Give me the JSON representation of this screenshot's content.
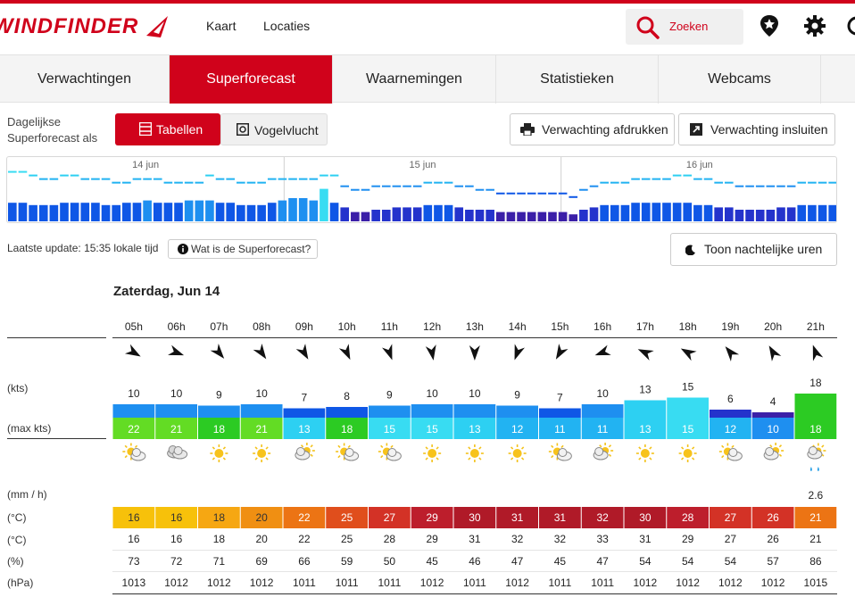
{
  "header": {
    "logo_text": "WINDFINDER",
    "nav": [
      "Kaart",
      "Locaties"
    ],
    "search_label": "Zoeken",
    "brand_color": "#d0021b"
  },
  "tabs": [
    "Verwachtingen",
    "Superforecast",
    "Waarnemingen",
    "Statistieken",
    "Webcams"
  ],
  "active_tab": "Superforecast",
  "mode": {
    "label_line1": "Dagelijkse",
    "label_line2": "Superforecast als",
    "option_tables": "Tabellen",
    "option_birdseye": "Vogelvlucht",
    "selected": "Tabellen"
  },
  "actions": {
    "print": "Verwachting afdrukken",
    "embed": "Verwachting insluiten",
    "night": "Toon nachtelijke uren"
  },
  "overview": {
    "days": [
      "14 jun",
      "15 jun",
      "16 jun"
    ],
    "wind_kts": [
      8,
      8,
      7,
      7,
      7,
      8,
      8,
      8,
      8,
      7,
      7,
      8,
      8,
      9,
      8,
      8,
      8,
      9,
      9,
      9,
      8,
      8,
      7,
      7,
      7,
      8,
      9,
      10,
      10,
      9,
      14,
      8,
      6,
      4,
      4,
      5,
      5,
      6,
      6,
      6,
      7,
      7,
      7,
      6,
      5,
      5,
      5,
      4,
      4,
      4,
      4,
      4,
      4,
      4,
      3,
      5,
      6,
      7,
      7,
      7,
      8,
      8,
      8,
      8,
      8,
      8,
      7,
      7,
      6,
      6,
      5,
      5,
      5,
      5,
      6,
      6,
      7,
      7,
      7,
      7
    ],
    "gust_kts": [
      14,
      14,
      13,
      12,
      12,
      13,
      13,
      12,
      12,
      12,
      11,
      11,
      12,
      12,
      12,
      11,
      11,
      11,
      11,
      13,
      12,
      12,
      11,
      11,
      11,
      12,
      12,
      12,
      12,
      12,
      13,
      13,
      10,
      9,
      9,
      10,
      10,
      10,
      10,
      10,
      11,
      11,
      11,
      10,
      10,
      9,
      9,
      8,
      8,
      8,
      8,
      8,
      8,
      8,
      7,
      9,
      10,
      11,
      11,
      11,
      12,
      12,
      12,
      12,
      13,
      13,
      12,
      12,
      11,
      11,
      10,
      10,
      10,
      10,
      10,
      10,
      11,
      11,
      11,
      11
    ]
  },
  "update": {
    "text": "Laatste update: 15:35 lokale tijd",
    "info_button": "Wat is de Superforecast?"
  },
  "day_title": "Zaterdag, Jun 14",
  "row_labels": {
    "wind": "(kts)",
    "gust": "(max kts)",
    "rain": "(mm / h)",
    "air_temp": "(°C)",
    "feels_temp": "(°C)",
    "humidity": "(%)",
    "pressure": "(hPa)"
  },
  "hours": [
    "05h",
    "06h",
    "07h",
    "08h",
    "09h",
    "10h",
    "11h",
    "12h",
    "13h",
    "14h",
    "15h",
    "16h",
    "17h",
    "18h",
    "19h",
    "20h",
    "21h"
  ],
  "wind_dir_deg": [
    120,
    110,
    140,
    145,
    150,
    155,
    160,
    170,
    180,
    200,
    210,
    250,
    295,
    300,
    320,
    330,
    340
  ],
  "wind_kts": [
    10,
    10,
    9,
    10,
    7,
    8,
    9,
    10,
    10,
    9,
    7,
    10,
    13,
    15,
    6,
    4,
    18
  ],
  "gust_kts": [
    22,
    21,
    18,
    21,
    13,
    18,
    15,
    15,
    13,
    12,
    11,
    11,
    13,
    15,
    12,
    10,
    18
  ],
  "weather_icons": [
    "sun-cloud",
    "cloud",
    "sun",
    "sun",
    "cloud-sun",
    "sun-cloud",
    "sun-cloud",
    "sun",
    "sun",
    "sun",
    "sun-cloud",
    "cloud-sun",
    "sun",
    "sun",
    "sun-cloud",
    "cloud-sun",
    "rain-cloud"
  ],
  "rain_mm": [
    "",
    "",
    "",
    "",
    "",
    "",
    "",
    "",
    "",
    "",
    "",
    "",
    "",
    "",
    "",
    "",
    "2.6"
  ],
  "air_temp": [
    16,
    16,
    18,
    20,
    22,
    25,
    27,
    29,
    30,
    31,
    31,
    32,
    30,
    28,
    27,
    26,
    21
  ],
  "feels_temp": [
    16,
    16,
    18,
    20,
    22,
    25,
    28,
    29,
    31,
    32,
    32,
    33,
    31,
    29,
    27,
    26,
    21
  ],
  "humidity": [
    73,
    72,
    71,
    69,
    66,
    59,
    50,
    45,
    46,
    47,
    45,
    47,
    54,
    54,
    54,
    57,
    86
  ],
  "pressure": [
    1013,
    1012,
    1012,
    1012,
    1011,
    1011,
    1011,
    1012,
    1011,
    1012,
    1011,
    1011,
    1012,
    1012,
    1012,
    1012,
    1015
  ]
}
